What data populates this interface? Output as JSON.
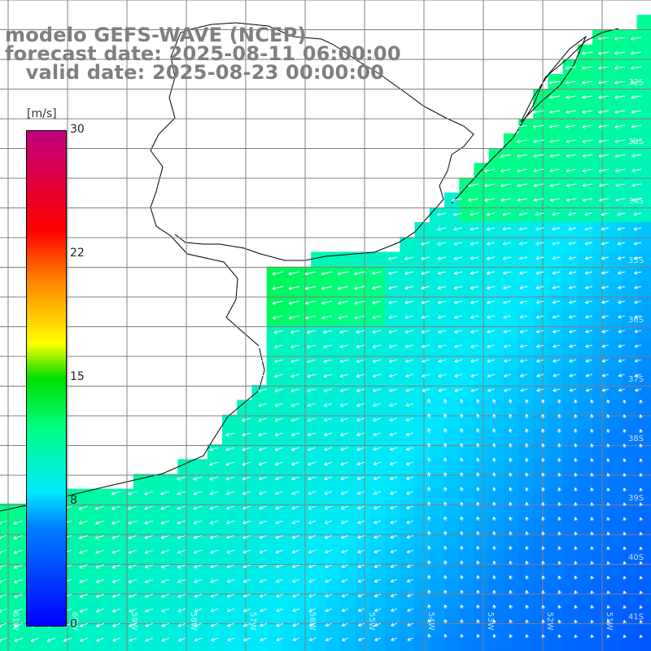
{
  "title": {
    "line1": "modelo GEFS-WAVE (NCEP)",
    "line2": "forecast date: 2025-08-11 06:00:00",
    "line3": "   valid date: 2025-08-23 00:00:00"
  },
  "colorbar": {
    "unit": "[m/s]",
    "ticks": [
      "30",
      "22",
      "15",
      "8",
      "0"
    ],
    "tick_values": [
      30,
      22,
      15,
      8,
      0
    ],
    "min": 0,
    "max": 30,
    "colors": [
      "#0000ff",
      "#0080ff",
      "#00e8ff",
      "#00ff80",
      "#00dd00",
      "#ffff00",
      "#ff8000",
      "#ff0000",
      "#c00080"
    ]
  },
  "map": {
    "lat_labels": [
      "32S",
      "33S",
      "34S",
      "35S",
      "36S",
      "37S",
      "38S",
      "39S",
      "40S",
      "41S"
    ],
    "lon_labels": [
      "61W",
      "60W",
      "59W",
      "58W",
      "57W",
      "56W",
      "55W",
      "54W",
      "53W",
      "52W",
      "51W"
    ],
    "land_color": "#ffffff",
    "grid_color": "#808080",
    "arrow_color": "#ffffff"
  }
}
